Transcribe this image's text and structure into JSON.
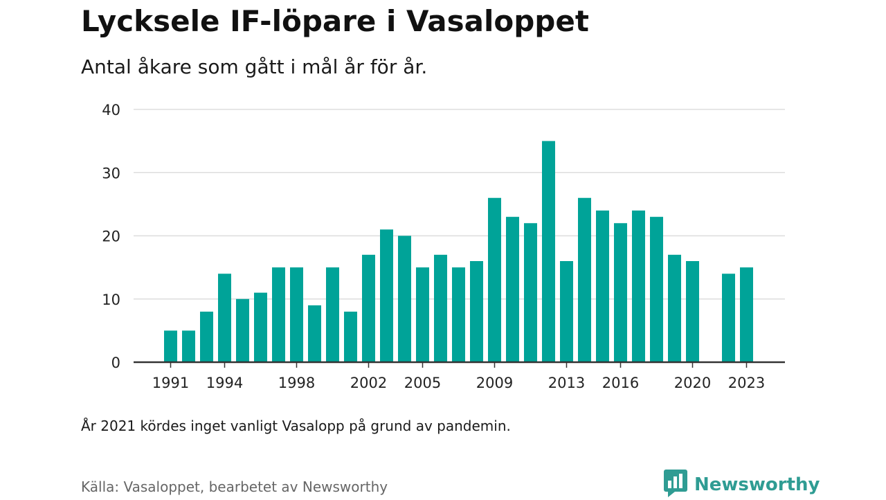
{
  "header": {
    "title": "Lycksele IF-löpare i Vasaloppet",
    "subtitle": "Antal åkare som gått i mål år för år."
  },
  "footer": {
    "note": "År 2021 kördes inget vanligt Vasalopp på grund av pandemin.",
    "source": "Källa: Vasaloppet, bearbetet av Newsworthy",
    "brand": "Newsworthy",
    "brand_icon": "bar-chart-speech-bubble-icon"
  },
  "colors": {
    "bar": "#00a398",
    "grid": "#dddddd",
    "axis": "#333333",
    "brand": "#2f9c93"
  },
  "chart_data": {
    "type": "bar",
    "title": "Lycksele IF-löpare i Vasaloppet",
    "subtitle": "Antal åkare som gått i mål år för år.",
    "xlabel": "",
    "ylabel": "",
    "ylim": [
      0,
      40
    ],
    "yticks": [
      0,
      10,
      20,
      30,
      40
    ],
    "xticks": [
      1991,
      1994,
      1998,
      2002,
      2005,
      2009,
      2013,
      2016,
      2020,
      2023
    ],
    "grid": true,
    "categories": [
      1991,
      1992,
      1993,
      1994,
      1995,
      1996,
      1997,
      1998,
      1999,
      2000,
      2001,
      2002,
      2003,
      2004,
      2005,
      2006,
      2007,
      2008,
      2009,
      2010,
      2011,
      2012,
      2013,
      2014,
      2015,
      2016,
      2017,
      2018,
      2019,
      2020,
      2021,
      2022,
      2023
    ],
    "values": [
      5,
      5,
      8,
      14,
      10,
      11,
      15,
      15,
      9,
      15,
      8,
      17,
      21,
      20,
      15,
      17,
      15,
      16,
      26,
      23,
      22,
      35,
      16,
      26,
      24,
      22,
      24,
      23,
      17,
      16,
      null,
      14,
      15
    ]
  }
}
